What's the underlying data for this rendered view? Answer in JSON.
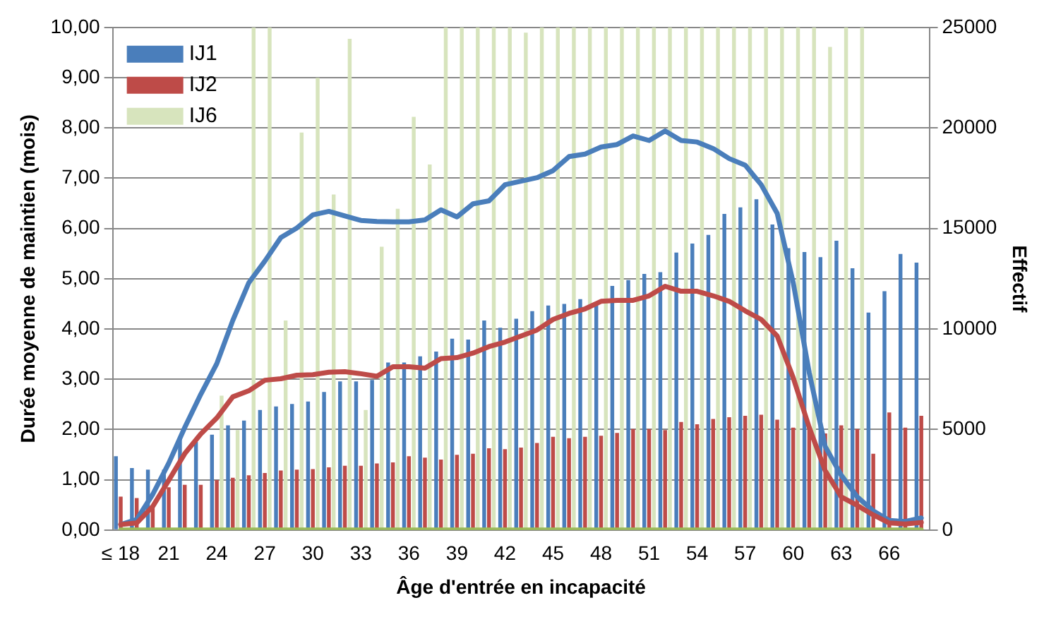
{
  "chart_data": {
    "type": "bar",
    "xlabel": "Âge d'entrée en incapacité",
    "ylabel": "Durée moyenne de maintien (mois)",
    "y2label": "Effectif",
    "categories": [
      "≤ 18",
      null,
      null,
      "21",
      null,
      null,
      "24",
      null,
      null,
      "27",
      null,
      null,
      "30",
      null,
      null,
      "33",
      null,
      null,
      "36",
      null,
      null,
      "39",
      null,
      null,
      "42",
      null,
      null,
      "45",
      null,
      null,
      "48",
      null,
      null,
      "51",
      null,
      null,
      "54",
      null,
      null,
      "57",
      null,
      null,
      "60",
      null,
      null,
      "63",
      null,
      null,
      "66",
      null,
      null
    ],
    "series": [
      {
        "name": "IJ1",
        "axis": "y2",
        "color": "#4a7ebb",
        "values": [
          3670,
          3080,
          3000,
          3000,
          4600,
          4380,
          4740,
          5210,
          5440,
          5970,
          6150,
          6270,
          6390,
          6870,
          7390,
          7390,
          7460,
          8330,
          8330,
          8640,
          8880,
          9520,
          9470,
          10420,
          10060,
          10510,
          10890,
          11170,
          11250,
          11480,
          11250,
          12140,
          12430,
          12740,
          12830,
          13800,
          14250,
          14680,
          15720,
          16050,
          16450,
          15200,
          14020,
          13830,
          13570,
          14390,
          13020,
          10820,
          11880,
          13730,
          13300
        ]
      },
      {
        "name": "IJ2",
        "axis": "y2",
        "color": "#be4b48",
        "values": [
          1660,
          1590,
          1100,
          2130,
          2250,
          2250,
          2490,
          2600,
          2720,
          2840,
          2960,
          3000,
          3030,
          3120,
          3200,
          3200,
          3310,
          3360,
          3670,
          3600,
          3500,
          3740,
          3790,
          4070,
          4020,
          4100,
          4330,
          4640,
          4570,
          4640,
          4690,
          4830,
          5020,
          5020,
          4970,
          5370,
          5260,
          5520,
          5610,
          5680,
          5730,
          5490,
          5090,
          5000,
          4800,
          5210,
          5020,
          3790,
          5850,
          5090,
          5680
        ]
      },
      {
        "name": "IJ6",
        "axis": "y2",
        "color": "#d7e4bd",
        "values": [
          0,
          0,
          0,
          0,
          0,
          0,
          6680,
          4970,
          25000,
          25000,
          10420,
          19770,
          22490,
          16690,
          24430,
          5970,
          14090,
          15980,
          20550,
          18180,
          25000,
          25000,
          25000,
          25000,
          25000,
          24740,
          25000,
          25000,
          25000,
          25000,
          25000,
          25000,
          25000,
          25000,
          25000,
          25000,
          25000,
          25000,
          25000,
          25000,
          25000,
          25000,
          25000,
          25000,
          24030,
          25000,
          25000,
          0,
          0,
          0,
          0
        ]
      },
      {
        "type": "line",
        "axis": "y",
        "color": "#9bbb59",
        "values": [
          0,
          0,
          0,
          0,
          0,
          0,
          0,
          0,
          0,
          0,
          0,
          0,
          0,
          0,
          0,
          0,
          0,
          0,
          0,
          0,
          0,
          0,
          0,
          0,
          0,
          0,
          0,
          0,
          0,
          0,
          0,
          0,
          0,
          0,
          0,
          0,
          0,
          0,
          0,
          0,
          0,
          0,
          0,
          0,
          0,
          0,
          0,
          0,
          0,
          0,
          0
        ]
      },
      {
        "type": "line",
        "axis": "y",
        "color": "#be4b48",
        "values": [
          0.11,
          0.14,
          0.47,
          0.99,
          1.52,
          1.91,
          2.23,
          2.65,
          2.77,
          2.98,
          3.01,
          3.08,
          3.09,
          3.14,
          3.15,
          3.11,
          3.06,
          3.25,
          3.25,
          3.22,
          3.41,
          3.43,
          3.52,
          3.65,
          3.74,
          3.86,
          3.98,
          4.19,
          4.31,
          4.4,
          4.55,
          4.57,
          4.57,
          4.66,
          4.85,
          4.75,
          4.75,
          4.66,
          4.55,
          4.36,
          4.19,
          3.86,
          3.03,
          2.04,
          1.18,
          0.66,
          0.49,
          0.3,
          0.14,
          0.12,
          0.15
        ]
      },
      {
        "type": "line",
        "axis": "y",
        "color": "#4a7ebb",
        "values": [
          0.11,
          0.21,
          0.71,
          1.33,
          2.04,
          2.7,
          3.31,
          4.17,
          4.92,
          5.35,
          5.82,
          6.01,
          6.27,
          6.34,
          6.25,
          6.16,
          6.14,
          6.13,
          6.13,
          6.17,
          6.37,
          6.23,
          6.49,
          6.55,
          6.87,
          6.94,
          7.01,
          7.15,
          7.43,
          7.48,
          7.62,
          7.67,
          7.84,
          7.75,
          7.94,
          7.75,
          7.72,
          7.59,
          7.39,
          7.26,
          6.87,
          6.3,
          4.92,
          3.13,
          1.66,
          1.09,
          0.66,
          0.38,
          0.19,
          0.17,
          0.24
        ]
      }
    ],
    "ylim": [
      0,
      10
    ],
    "yticks": [
      {
        "value": 0,
        "label": "0,00"
      },
      {
        "value": 1,
        "label": "1,00"
      },
      {
        "value": 2,
        "label": "2,00"
      },
      {
        "value": 3,
        "label": "3,00"
      },
      {
        "value": 4,
        "label": "4,00"
      },
      {
        "value": 5,
        "label": "5,00"
      },
      {
        "value": 6,
        "label": "6,00"
      },
      {
        "value": 7,
        "label": "7,00"
      },
      {
        "value": 8,
        "label": "8,00"
      },
      {
        "value": 9,
        "label": "9,00"
      },
      {
        "value": 10,
        "label": "10,00"
      }
    ],
    "y2lim": [
      0,
      25000
    ],
    "y2ticks": [
      0,
      5000,
      10000,
      15000,
      20000,
      25000
    ],
    "grid": "y",
    "legend": "top left",
    "marker": "none",
    "line_style": "solid"
  }
}
